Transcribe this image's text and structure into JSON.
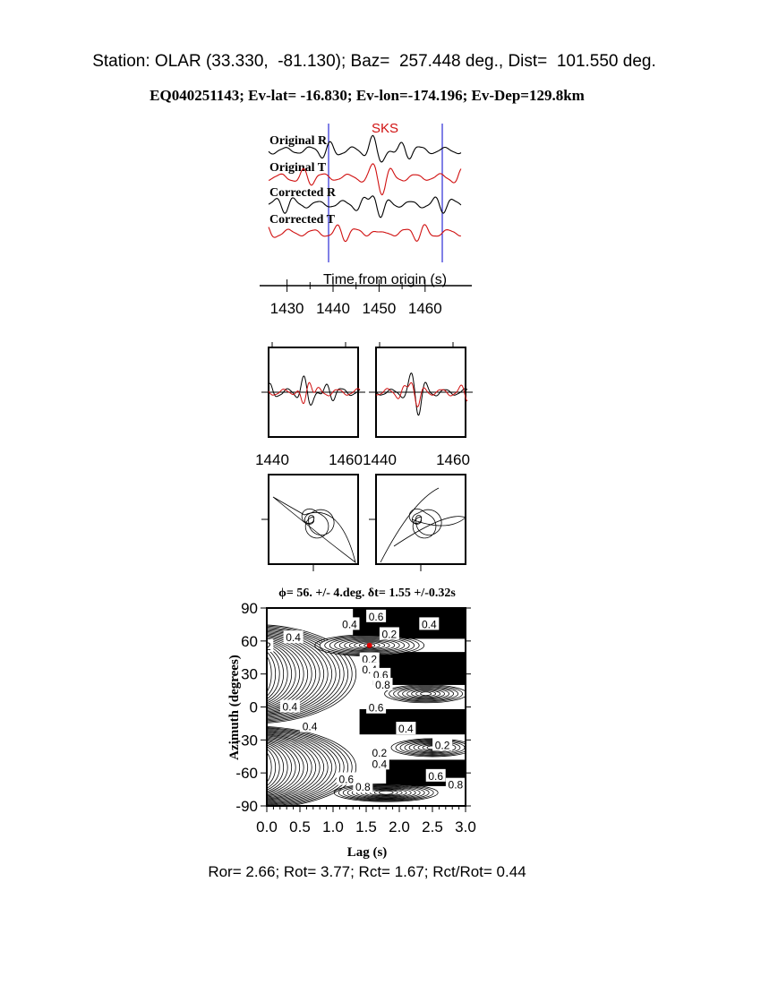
{
  "header": {
    "station_line": "Station: OLAR (33.330,  -81.130); Baz=  257.448 deg., Dist=  101.550 deg.",
    "event_line": "EQ040251143; Ev-lat= -16.830; Ev-lon=-174.196; Ev-Dep=129.8km"
  },
  "chart_data": [
    {
      "type": "line",
      "title": "",
      "phase_label": "SKS",
      "trace_labels": [
        "Original R",
        "Original T",
        "Corrected R",
        "Corrected T"
      ],
      "series_colors": {
        "R": "#000000",
        "T": "#d01010"
      },
      "window_marker_color": "#0000cc",
      "window_markers_s": [
        1439,
        1463.7
      ],
      "xlabel": "Time from origin (s)",
      "xticks": [
        1430,
        1440,
        1450,
        1460
      ],
      "xlim": [
        1425,
        1468
      ]
    },
    {
      "type": "line",
      "panels": [
        {
          "xticks": [
            1440,
            1460
          ]
        },
        {
          "xticks": [
            1440,
            1460
          ]
        }
      ]
    },
    {
      "type": "scatter",
      "description": "particle motion",
      "panels": 2
    },
    {
      "type": "heatmap",
      "title": "ϕ= 56. +/- 4.deg. δt= 1.55 +/-0.32s",
      "xlabel": "Lag (s)",
      "ylabel": "Azimuth (degrees)",
      "xlim": [
        0,
        3
      ],
      "ylim": [
        -90,
        90
      ],
      "xticks": [
        "0.0",
        "0.5",
        "1.0",
        "1.5",
        "2.0",
        "2.5",
        "3.0"
      ],
      "yticks": [
        "90",
        "60",
        "30",
        "0",
        "-30",
        "-60",
        "-90"
      ],
      "best_fit": {
        "lag": 1.55,
        "azimuth": 56,
        "color": "#e00000"
      },
      "contour_labels": [
        "0.4",
        "0.6",
        "0.4",
        "0.2",
        "0.2",
        "0.4",
        "0.2",
        "0.4",
        "0.6",
        "0.8",
        "0.4",
        "0.6",
        "0.4",
        "0.4",
        "0.2",
        "0.2",
        "0.4",
        "0.6",
        "0.8",
        "0.6",
        "0.8"
      ]
    }
  ],
  "footer": {
    "ratios": "Ror= 2.66; Rot= 3.77; Rct= 1.67; Rct/Rot= 0.44"
  }
}
